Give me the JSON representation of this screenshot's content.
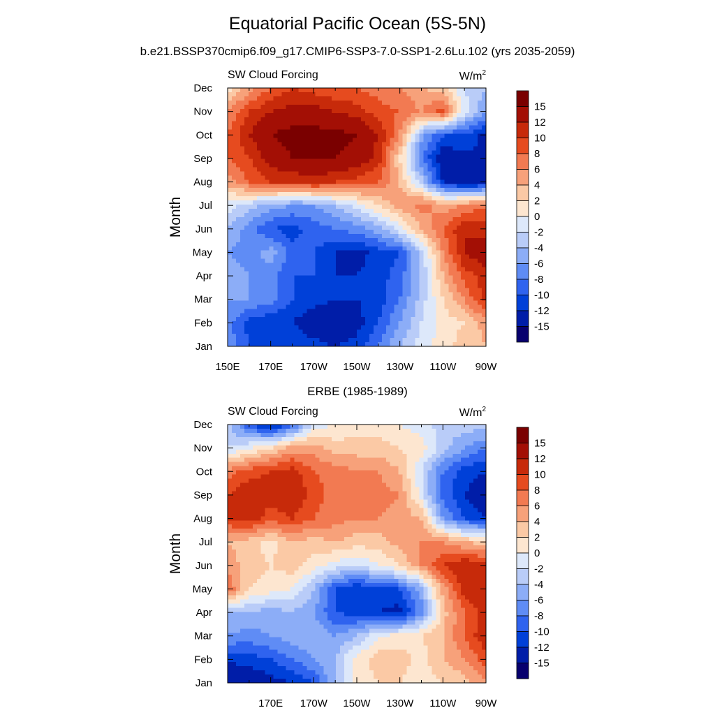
{
  "figure": {
    "title": "Equatorial Pacific Ocean (5S-5N)",
    "subtitle": "b.e21.BSSP370cmip6.f09_g17.CMIP6-SSP3-7.0-SSP1-2.6Lu.102 (yrs 2035-2059)"
  },
  "colorbar": {
    "levels": [
      -15,
      -12,
      -10,
      -8,
      -6,
      -4,
      -2,
      0,
      2,
      4,
      6,
      8,
      10,
      12,
      15
    ],
    "labels": [
      "15",
      "12",
      "10",
      "8",
      "6",
      "4",
      "2",
      "0",
      "-2",
      "-4",
      "-6",
      "-8",
      "-10",
      "-12",
      "-15"
    ],
    "colors": [
      "#08006e",
      "#001da8",
      "#0040d8",
      "#2f63ef",
      "#5f8cf5",
      "#8cadf7",
      "#b9ccf8",
      "#dde8fa",
      "#fde6d0",
      "#fbc9a5",
      "#f7a17a",
      "#f27a52",
      "#e64b1f",
      "#c72a0a",
      "#a30f05",
      "#7a0000"
    ]
  },
  "chart_data": [
    {
      "type": "heatmap",
      "panel_title": "",
      "left_label": "SW Cloud Forcing",
      "right_label": "W/m",
      "right_label_sup": "2",
      "ylabel": "Month",
      "xlabel": "",
      "x_ticklabels": [
        "150E",
        "170E",
        "170W",
        "150W",
        "130W",
        "110W",
        "90W"
      ],
      "y_ticklabels": [
        "Jan",
        "Feb",
        "Mar",
        "Apr",
        "May",
        "Jun",
        "Jul",
        "Aug",
        "Sep",
        "Oct",
        "Nov",
        "Dec"
      ],
      "xlim": [
        150,
        270
      ],
      "ylim": [
        1,
        12
      ],
      "x": [
        150,
        160,
        170,
        180,
        190,
        200,
        210,
        220,
        230,
        240,
        250,
        260,
        270
      ],
      "y": [
        1,
        2,
        3,
        4,
        5,
        6,
        7,
        8,
        9,
        10,
        11,
        12
      ],
      "z": [
        [
          -7,
          -10,
          -11,
          -10,
          -11,
          -12,
          -11,
          -8,
          -4,
          -1,
          1,
          3,
          4
        ],
        [
          -7,
          -11,
          -12,
          -12,
          -14,
          -15,
          -13,
          -10,
          -6,
          -2,
          1,
          2,
          5
        ],
        [
          -6,
          -6,
          -7,
          -10,
          -11,
          -12,
          -12,
          -11,
          -8,
          -3,
          2,
          6,
          11
        ],
        [
          -5,
          -6,
          -7,
          -10,
          -10,
          -12,
          -12,
          -11,
          -9,
          -4,
          4,
          9,
          11
        ],
        [
          -6,
          -7,
          -5,
          -9,
          -10,
          -12,
          -13,
          -11,
          -10,
          -3,
          6,
          12,
          14
        ],
        [
          -4,
          -7,
          -10,
          -11,
          -9,
          -8,
          -7,
          -5,
          -1,
          4,
          8,
          12,
          11
        ],
        [
          -1,
          -3,
          -5,
          -6,
          -6,
          -4,
          -1,
          2,
          5,
          7,
          5,
          6,
          8
        ],
        [
          5,
          8,
          10,
          10,
          11,
          10,
          9,
          8,
          4,
          -3,
          -12,
          -14,
          -13
        ],
        [
          8,
          10,
          13,
          15,
          15,
          15,
          14,
          11,
          2,
          -8,
          -14,
          -13,
          -12
        ],
        [
          8,
          12,
          15,
          16,
          16,
          16,
          15,
          12,
          6,
          -5,
          -10,
          -10,
          -13
        ],
        [
          6,
          10,
          12,
          13,
          13,
          12,
          11,
          9,
          8,
          6,
          9,
          -1,
          -6
        ],
        [
          1,
          5,
          8,
          10,
          9,
          8,
          8,
          7,
          6,
          4,
          3,
          -2,
          -4
        ]
      ]
    },
    {
      "type": "heatmap",
      "panel_title": "ERBE (1985-1989)",
      "left_label": "SW Cloud Forcing",
      "right_label": "W/m",
      "right_label_sup": "2",
      "ylabel": "Month",
      "xlabel": "",
      "x_ticklabels": [
        "170E",
        "170W",
        "150W",
        "130W",
        "110W",
        "90W"
      ],
      "y_ticklabels": [
        "Jan",
        "Feb",
        "Mar",
        "Apr",
        "May",
        "Jun",
        "Jul",
        "Aug",
        "Sep",
        "Oct",
        "Nov",
        "Dec"
      ],
      "xlim": [
        150,
        270
      ],
      "ylim": [
        1,
        12
      ],
      "x": [
        150,
        160,
        170,
        180,
        190,
        200,
        210,
        220,
        230,
        240,
        250,
        260,
        270
      ],
      "y": [
        1,
        2,
        3,
        4,
        5,
        6,
        7,
        8,
        9,
        10,
        11,
        12
      ],
      "z": [
        [
          -13,
          -14,
          -13,
          -12,
          -10,
          -4,
          1,
          2,
          2,
          1,
          2,
          3,
          6
        ],
        [
          -12,
          -11,
          -10,
          -8,
          -6,
          -4,
          1,
          3,
          3,
          1,
          4,
          6,
          9
        ],
        [
          -6,
          -7,
          -6,
          -5,
          -4,
          -6,
          -4,
          0,
          1,
          2,
          4,
          8,
          12
        ],
        [
          -4,
          -4,
          -5,
          -4,
          -6,
          -10,
          -11,
          -12,
          -13,
          -7,
          3,
          8,
          11
        ],
        [
          8,
          2,
          1,
          0,
          -4,
          -10,
          -12,
          -11,
          -10,
          -5,
          5,
          11,
          12
        ],
        [
          5,
          3,
          2,
          3,
          1,
          -1,
          -2,
          0,
          2,
          6,
          10,
          12,
          11
        ],
        [
          4,
          3,
          1,
          4,
          3,
          4,
          3,
          3,
          5,
          6,
          6,
          4,
          3
        ],
        [
          10,
          11,
          9,
          10,
          8,
          7,
          6,
          6,
          5,
          4,
          -6,
          -10,
          -12
        ],
        [
          10,
          12,
          11,
          12,
          9,
          7,
          6,
          7,
          6,
          -1,
          -9,
          -12,
          -14
        ],
        [
          7,
          9,
          10,
          11,
          8,
          7,
          6,
          6,
          4,
          -2,
          -8,
          -11,
          -12
        ],
        [
          -2,
          0,
          2,
          5,
          5,
          3,
          3,
          3,
          2,
          1,
          -3,
          -6,
          -8
        ],
        [
          -3,
          -10,
          -13,
          -9,
          -1,
          0,
          1,
          1,
          0,
          -1,
          -3,
          -3,
          -3
        ]
      ]
    }
  ]
}
